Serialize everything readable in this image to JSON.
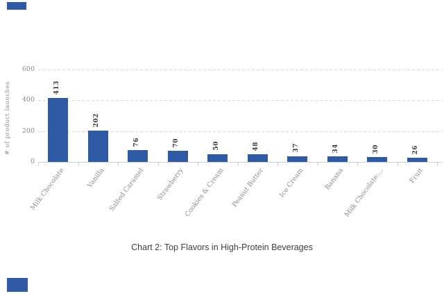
{
  "page": {
    "background": "#ffffff"
  },
  "decor": {
    "top_fragment_color": "#2E59A4",
    "bottom_fragment_color": "#2E59A4"
  },
  "chart_data": {
    "type": "bar",
    "title": "",
    "caption": "Chart 2: Top Flavors in High-Protein Beverages",
    "ylabel": "# of product launches",
    "xlabel": "",
    "categories": [
      "Milk Chocolate",
      "Vanilla",
      "Salted Caramel",
      "Strawberry",
      "Cookies & Cream",
      "Peanut Butter",
      "Ice Cream",
      "Banana",
      "Milk Chocolate:...",
      "Fruit"
    ],
    "values": [
      413,
      202,
      76,
      70,
      50,
      48,
      37,
      34,
      30,
      26
    ],
    "yticks": [
      0,
      200,
      400,
      600
    ],
    "ylim": [
      0,
      600
    ],
    "grid": "horizontal-dashed",
    "legend": "none",
    "bar_color": "#2E59A4",
    "gridline_color": "#d9d9d9",
    "axis_line_color": "#c3cfe2",
    "tick_label_color": "#8c8c8c",
    "value_label_color": "#3a3a3a",
    "caption_color": "#3f3f3f"
  }
}
